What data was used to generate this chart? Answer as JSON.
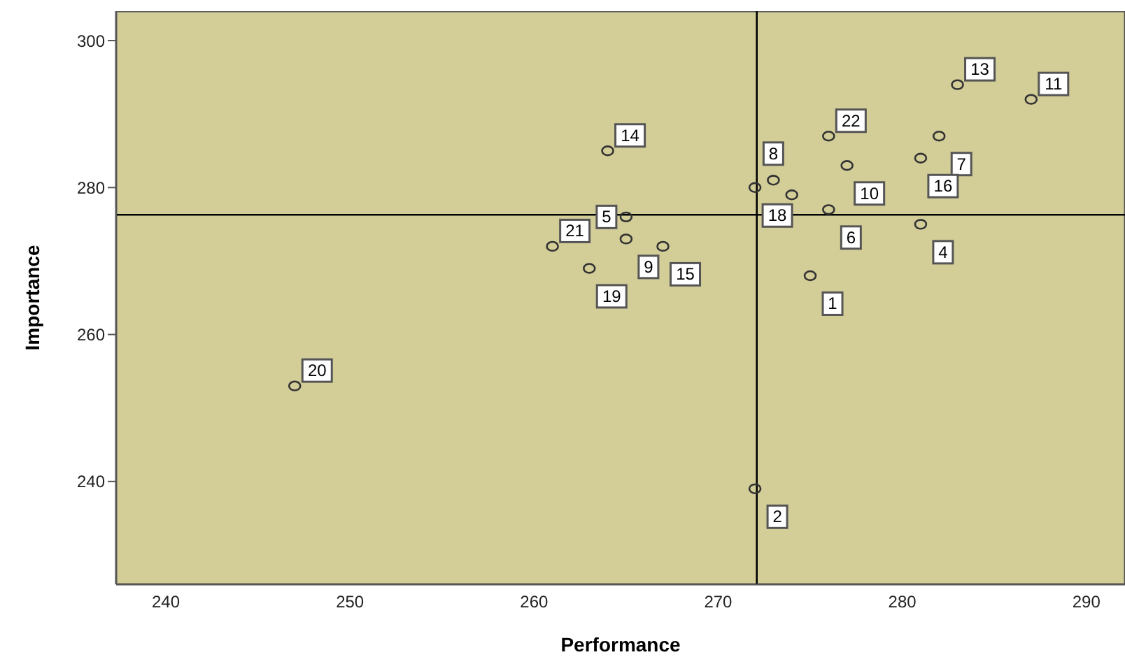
{
  "chart_data": {
    "type": "scatter",
    "xlabel": "Performance",
    "ylabel": "Importance",
    "xlim": [
      237.3,
      292.1
    ],
    "xticks": [
      240,
      250,
      260,
      270,
      280,
      290
    ],
    "ylim": [
      226,
      304
    ],
    "yticks": [
      240,
      260,
      280,
      300
    ],
    "grid": false,
    "marker": "circle",
    "series": [
      {
        "color": "#333333",
        "x": [
          264,
          276,
          282,
          281,
          277,
          273,
          272,
          274,
          276,
          281,
          275,
          265,
          265,
          261,
          267,
          263,
          283,
          287,
          247,
          272
        ],
        "values": [
          285,
          287,
          287,
          284,
          283,
          281,
          280,
          279,
          277,
          275,
          268,
          276,
          273,
          272,
          272,
          269,
          294,
          292,
          253,
          239
        ]
      }
    ],
    "ref_lines": [
      {
        "axis": "x",
        "value": 272.1,
        "color": "#000000"
      },
      {
        "axis": "y",
        "value": 276.3,
        "color": "#000000"
      }
    ],
    "annotations": [
      {
        "text": "14",
        "x": 264,
        "y": 285
      },
      {
        "text": "22",
        "x": 276,
        "y": 287
      },
      {
        "text": "7",
        "x": 282,
        "y": 287
      },
      {
        "text": "16",
        "x": 281,
        "y": 284
      },
      {
        "text": "10",
        "x": 277,
        "y": 283
      },
      {
        "text": "8",
        "x": 273,
        "y": 281
      },
      {
        "text": "18",
        "x": 272,
        "y": 280
      },
      {
        "text": "6",
        "x": 276,
        "y": 277
      },
      {
        "text": "4",
        "x": 281,
        "y": 275
      },
      {
        "text": "1",
        "x": 275,
        "y": 268
      },
      {
        "text": "5",
        "x": 265,
        "y": 276
      },
      {
        "text": "9",
        "x": 265,
        "y": 273
      },
      {
        "text": "21",
        "x": 261,
        "y": 272
      },
      {
        "text": "15",
        "x": 267,
        "y": 272
      },
      {
        "text": "19",
        "x": 263,
        "y": 269
      },
      {
        "text": "13",
        "x": 283,
        "y": 294
      },
      {
        "text": "11",
        "x": 287,
        "y": 292
      },
      {
        "text": "20",
        "x": 247,
        "y": 253
      },
      {
        "text": "2",
        "x": 272,
        "y": 239
      }
    ]
  }
}
